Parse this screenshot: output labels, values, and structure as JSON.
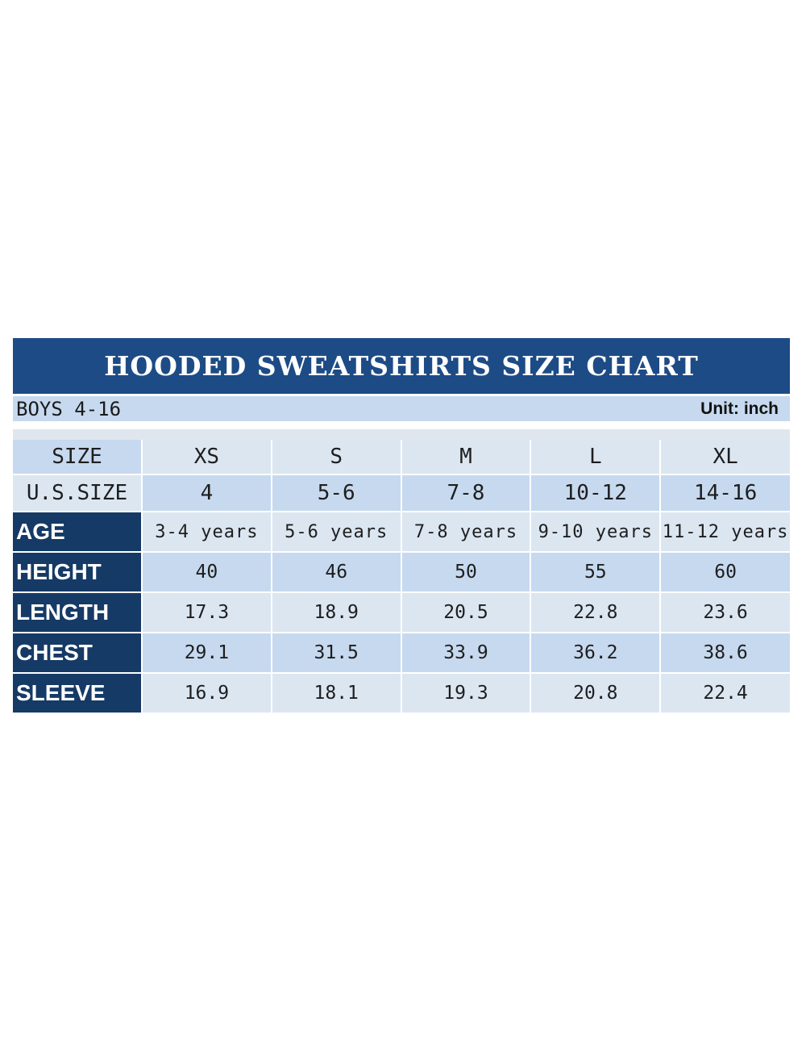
{
  "title": "HOODED SWEATSHIRTS SIZE CHART",
  "subtitle_left": "BOYS 4-16",
  "unit_label": "Unit: inch",
  "table": {
    "size_header": "SIZE",
    "sizes": [
      "XS",
      "S",
      "M",
      "L",
      "XL"
    ],
    "us_size_header": "U.S.SIZE",
    "us_sizes": [
      "4",
      "5-6",
      "7-8",
      "10-12",
      "14-16"
    ],
    "rows": [
      {
        "label": "AGE",
        "values": [
          "3-4 years",
          "5-6 years",
          "7-8 years",
          "9-10 years",
          "11-12 years"
        ]
      },
      {
        "label": "HEIGHT",
        "values": [
          "40",
          "46",
          "50",
          "55",
          "60"
        ]
      },
      {
        "label": "LENGTH",
        "values": [
          "17.3",
          "18.9",
          "20.5",
          "22.8",
          "23.6"
        ]
      },
      {
        "label": "CHEST",
        "values": [
          "29.1",
          "31.5",
          "33.9",
          "36.2",
          "38.6"
        ]
      },
      {
        "label": "SLEEVE",
        "values": [
          "16.9",
          "18.1",
          "19.3",
          "20.8",
          "22.4"
        ]
      }
    ]
  },
  "colors": {
    "title_bg": "#1d4b86",
    "label_bg": "#163a66",
    "light_blue": "#c6d9ef",
    "pale_blue": "#dbe6f1"
  }
}
